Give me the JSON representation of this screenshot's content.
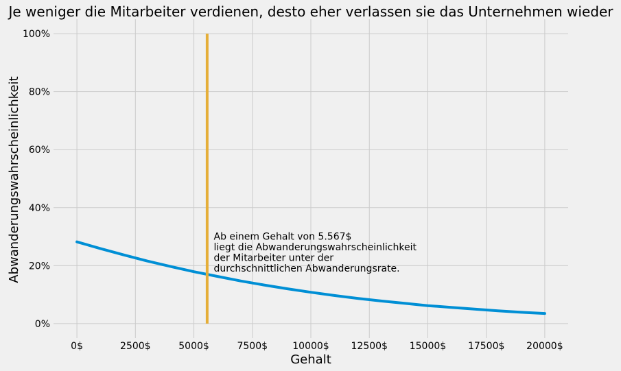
{
  "chart_data": {
    "type": "line",
    "title": "Je weniger die Mitarbeiter verdienen, desto eher verlassen sie das Unternehmen wieder",
    "xlabel": "Gehalt",
    "ylabel": "Abwanderungswahrscheinlichkeit",
    "xlim": [
      -1000,
      21000
    ],
    "ylim": [
      -0.05,
      1.05
    ],
    "xticks": [
      0,
      2500,
      5000,
      7500,
      10000,
      12500,
      15000,
      17500,
      20000
    ],
    "xtick_labels": [
      "0$",
      "2500$",
      "5000$",
      "7500$",
      "10000$",
      "12500$",
      "15000$",
      "17500$",
      "20000$"
    ],
    "yticks": [
      0,
      0.2,
      0.4,
      0.6,
      0.8,
      1.0
    ],
    "ytick_labels": [
      "0%",
      "20%",
      "40%",
      "60%",
      "80%",
      "100%"
    ],
    "grid": true,
    "series": [
      {
        "color": "#008fd5",
        "x": [
          0,
          1000,
          2000,
          3000,
          4000,
          5000,
          6000,
          7000,
          8000,
          9000,
          10000,
          11000,
          12000,
          13000,
          14000,
          15000,
          16000,
          17000,
          18000,
          19000,
          20000
        ],
        "y": [
          0.282,
          0.259,
          0.237,
          0.216,
          0.197,
          0.179,
          0.163,
          0.147,
          0.133,
          0.12,
          0.108,
          0.097,
          0.087,
          0.078,
          0.07,
          0.062,
          0.056,
          0.05,
          0.044,
          0.039,
          0.035
        ]
      }
    ],
    "vline": {
      "x": 5567,
      "y": [
        0,
        1.0
      ],
      "color": "#e5ae38"
    },
    "annotation": {
      "x": 5850,
      "y": 0.18,
      "lines": [
        "Ab einem Gehalt von 5.567$",
        "liegt die Abwanderungswahrscheinlichkeit",
        "der Mitarbeiter unter der",
        "durchschnittlichen Abwanderungsrate."
      ]
    }
  }
}
